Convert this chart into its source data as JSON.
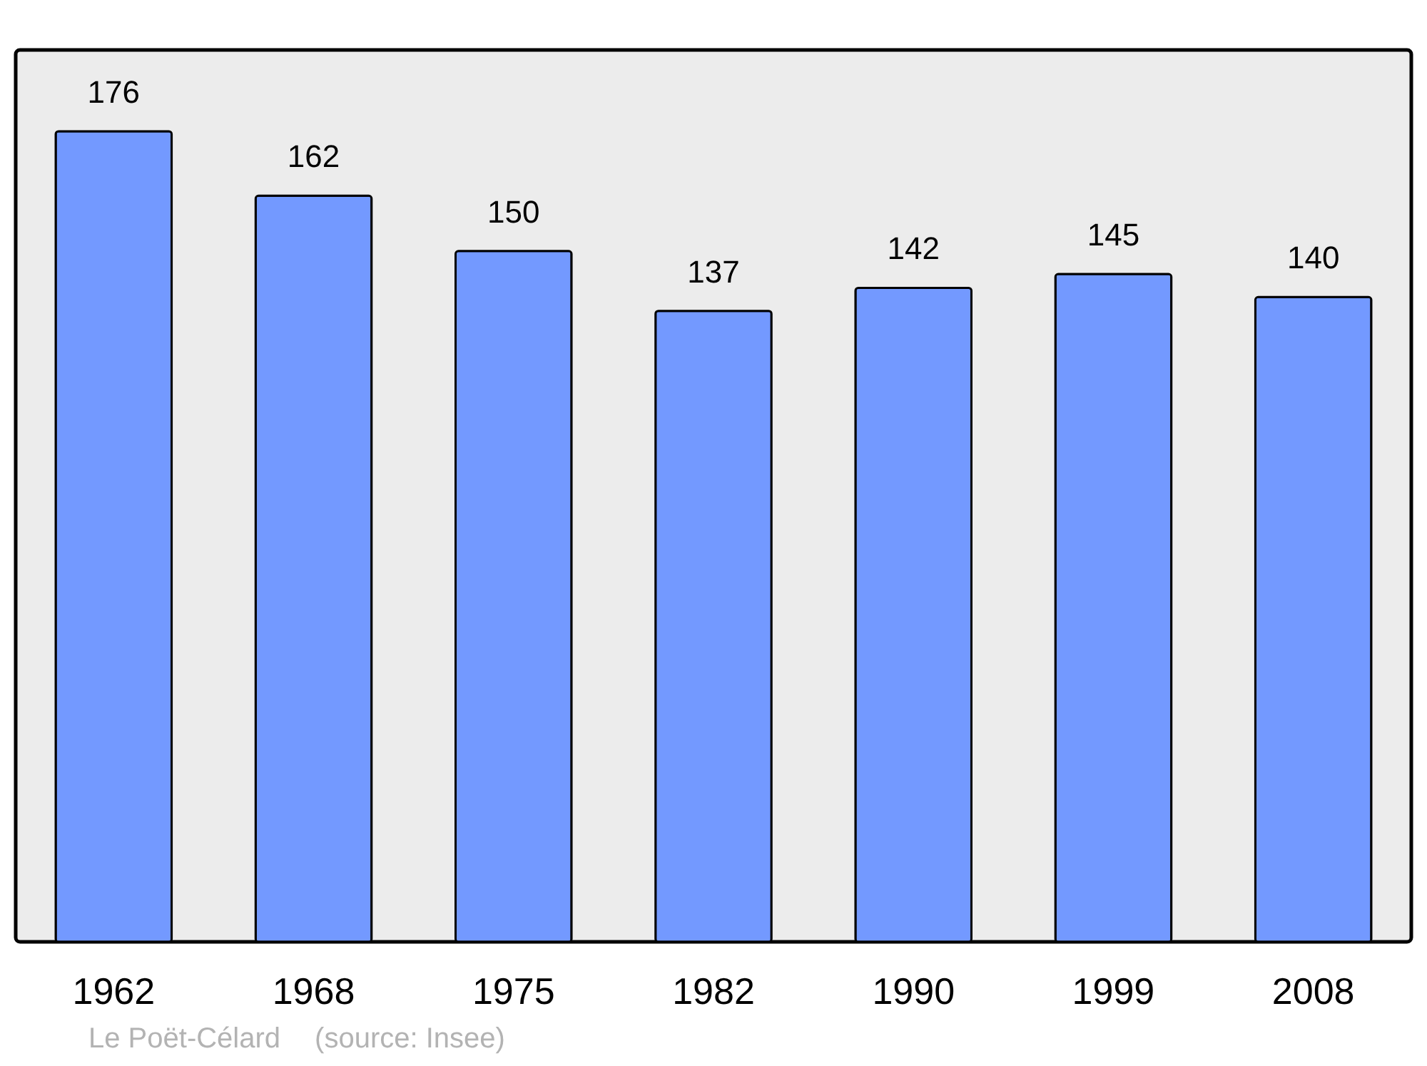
{
  "chart_data": {
    "type": "bar",
    "categories": [
      "1962",
      "1968",
      "1975",
      "1982",
      "1990",
      "1999",
      "2008"
    ],
    "values": [
      176,
      162,
      150,
      137,
      142,
      145,
      140
    ],
    "color": "#7399ff",
    "data_labels": true,
    "annotations": [
      "Le Poët-Célard",
      "(source: Insee)"
    ]
  }
}
